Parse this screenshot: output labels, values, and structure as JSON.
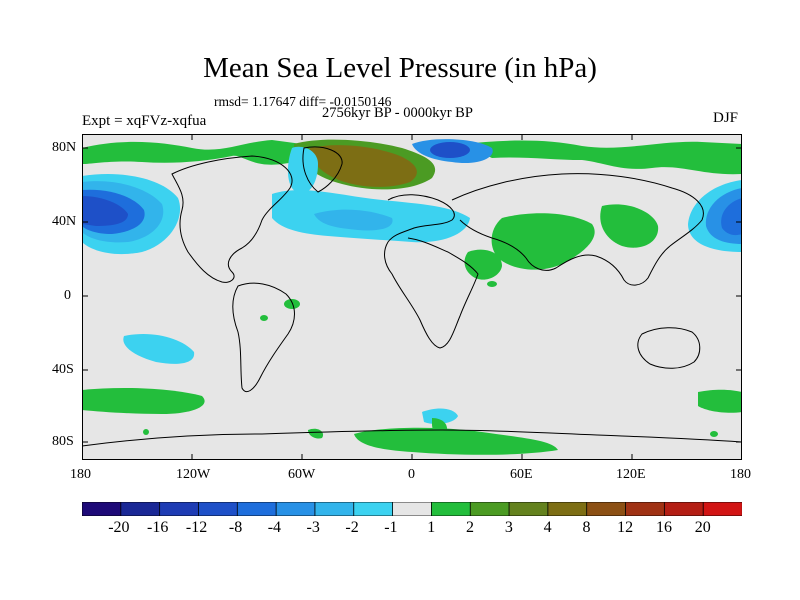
{
  "title": "Mean Sea Level Pressure (in hPa)",
  "stats": "rmsd= 1.17647 diff= -0.0150146",
  "period": "2756kyr BP - 0000kyr BP",
  "experiment": "Expt = xqFVz-xqfua",
  "season": "DJF",
  "axes": {
    "lat_ticks": [
      "80N",
      "40N",
      "0",
      "40S",
      "80S"
    ],
    "lon_ticks": [
      "180",
      "120W",
      "60W",
      "0",
      "60E",
      "120E",
      "180"
    ]
  },
  "colorbar": {
    "colors": [
      "#1e0a78",
      "#1a2896",
      "#1e3cb4",
      "#1e50c8",
      "#1e6edc",
      "#2891e6",
      "#32b4eb",
      "#3cd2f0",
      "#e6e6e6",
      "#23be3c",
      "#4b9b23",
      "#64821e",
      "#7d6e14",
      "#8c5014",
      "#a03214",
      "#b41e14",
      "#d21414"
    ],
    "labels": [
      "-20",
      "-16",
      "-12",
      "-8",
      "-4",
      "-3",
      "-2",
      "-1",
      "1",
      "2",
      "3",
      "4",
      "8",
      "12",
      "16",
      "20"
    ]
  },
  "colors": {
    "land_outline": "#000000",
    "background": "#e6e6e6"
  }
}
